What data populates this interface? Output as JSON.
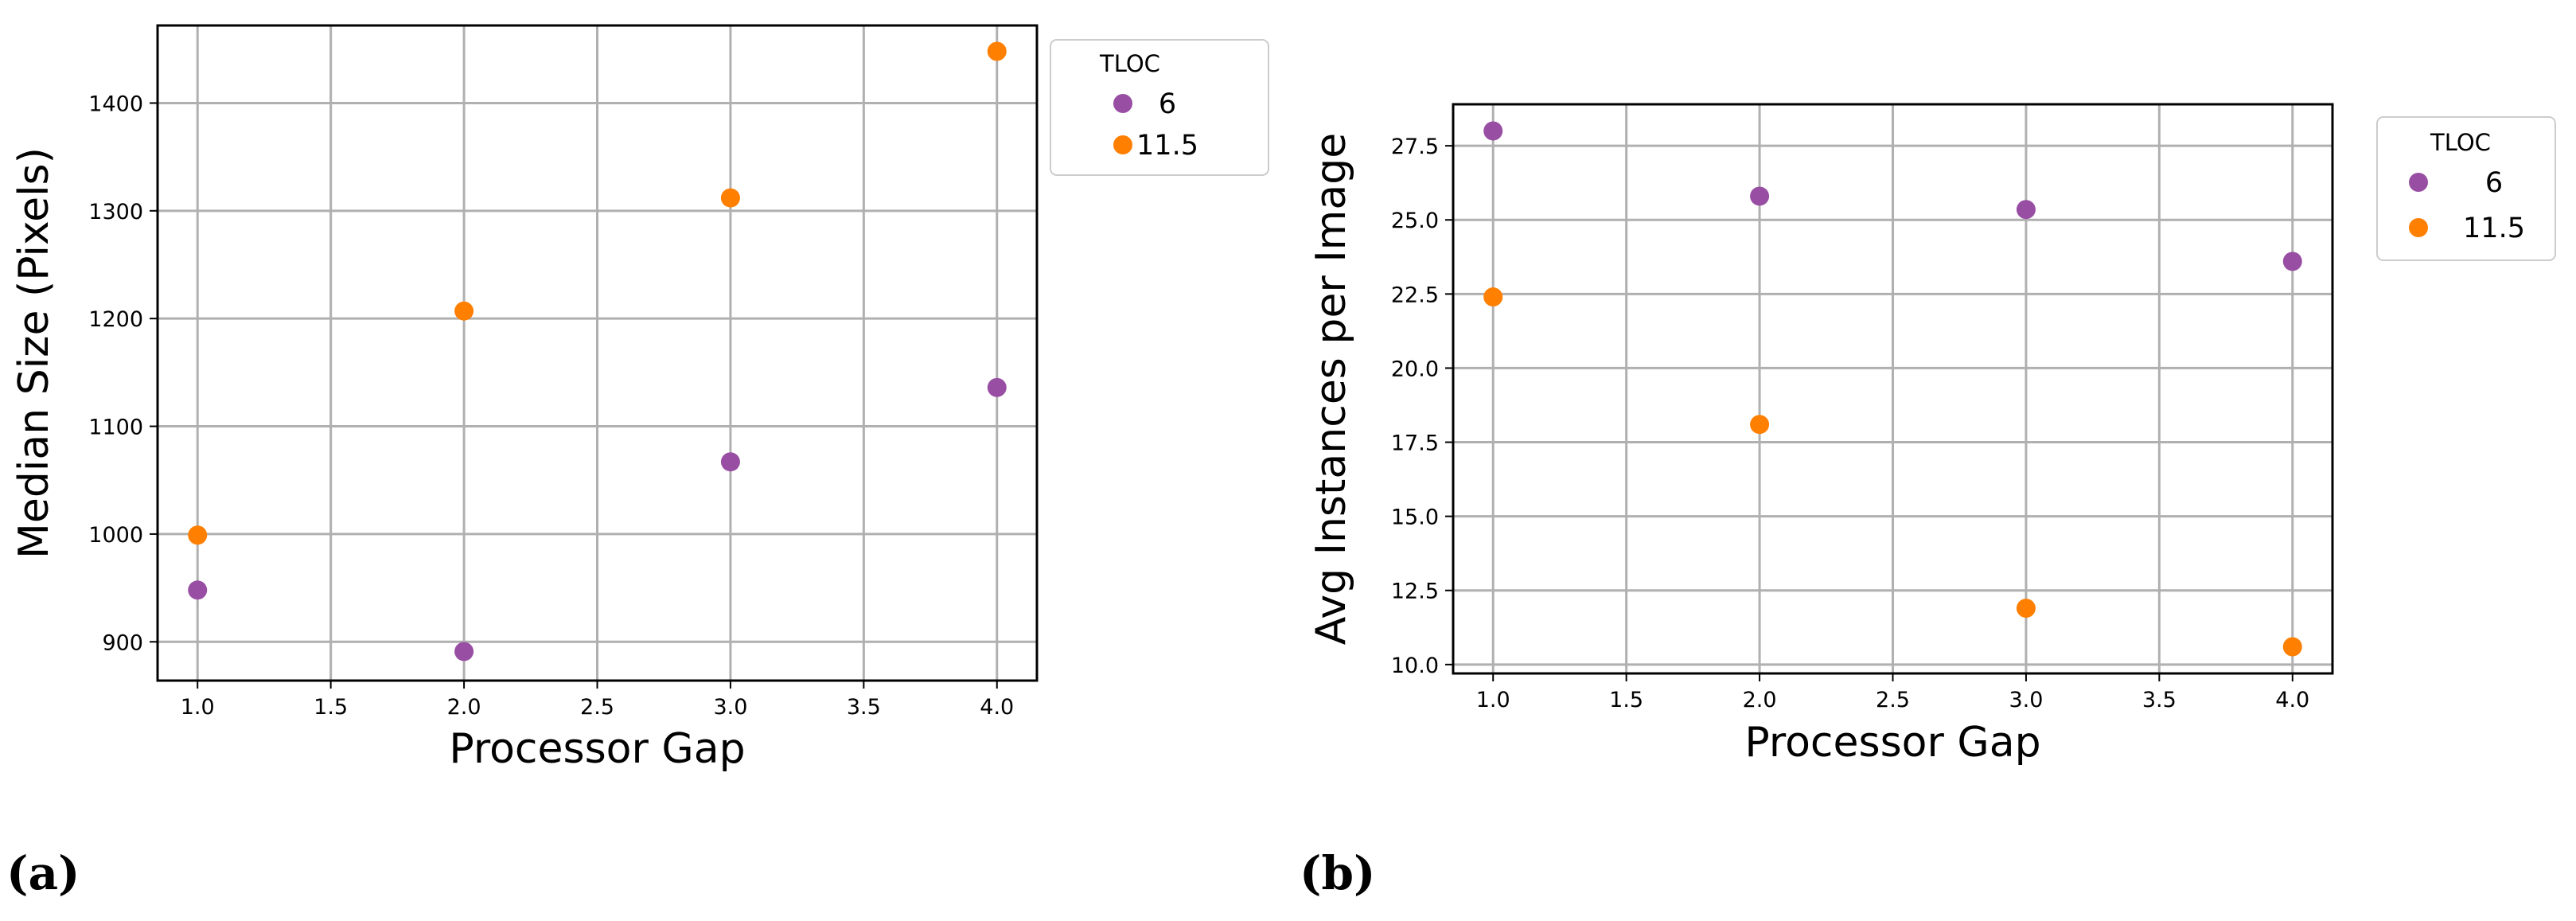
{
  "chart_data": [
    {
      "panel_label": "(a)",
      "type": "scatter",
      "title": "",
      "xlabel": "Processor Gap",
      "ylabel": "Median Size (Pixels)",
      "xlim": [
        0.85,
        4.15
      ],
      "ylim": [
        864,
        1472
      ],
      "x_ticks": [
        1.0,
        1.5,
        2.0,
        2.5,
        3.0,
        3.5,
        4.0
      ],
      "x_tick_labels": [
        "1.0",
        "1.5",
        "2.0",
        "2.5",
        "3.0",
        "3.5",
        "4.0"
      ],
      "y_ticks": [
        900,
        1000,
        1100,
        1200,
        1300,
        1400
      ],
      "y_tick_labels": [
        "900",
        "1000",
        "1100",
        "1200",
        "1300",
        "1400"
      ],
      "grid": true,
      "legend": {
        "title": "TLOC",
        "placement": "outside-top-right"
      },
      "series": [
        {
          "name": "6",
          "color": "#984ea3",
          "x": [
            1,
            2,
            3,
            4
          ],
          "y": [
            948,
            891,
            1067,
            1136
          ]
        },
        {
          "name": "11.5",
          "color": "#ff7f00",
          "x": [
            1,
            2,
            3,
            4
          ],
          "y": [
            999,
            1207,
            1312,
            1448
          ]
        }
      ]
    },
    {
      "panel_label": "(b)",
      "type": "scatter",
      "title": "",
      "xlabel": "Processor Gap",
      "ylabel": "Avg Instances per Image",
      "xlim": [
        0.85,
        4.15
      ],
      "ylim": [
        9.7,
        28.9
      ],
      "x_ticks": [
        1.0,
        1.5,
        2.0,
        2.5,
        3.0,
        3.5,
        4.0
      ],
      "x_tick_labels": [
        "1.0",
        "1.5",
        "2.0",
        "2.5",
        "3.0",
        "3.5",
        "4.0"
      ],
      "y_ticks": [
        10.0,
        12.5,
        15.0,
        17.5,
        20.0,
        22.5,
        25.0,
        27.5
      ],
      "y_tick_labels": [
        "10.0",
        "12.5",
        "15.0",
        "17.5",
        "20.0",
        "22.5",
        "25.0",
        "27.5"
      ],
      "grid": true,
      "legend": {
        "title": "TLOC",
        "placement": "outside-top-right"
      },
      "series": [
        {
          "name": "6",
          "color": "#984ea3",
          "x": [
            1,
            2,
            3,
            4
          ],
          "y": [
            28.0,
            25.8,
            25.35,
            23.6
          ]
        },
        {
          "name": "11.5",
          "color": "#ff7f00",
          "x": [
            1,
            2,
            3,
            4
          ],
          "y": [
            22.4,
            18.1,
            11.9,
            10.6
          ]
        }
      ]
    }
  ]
}
